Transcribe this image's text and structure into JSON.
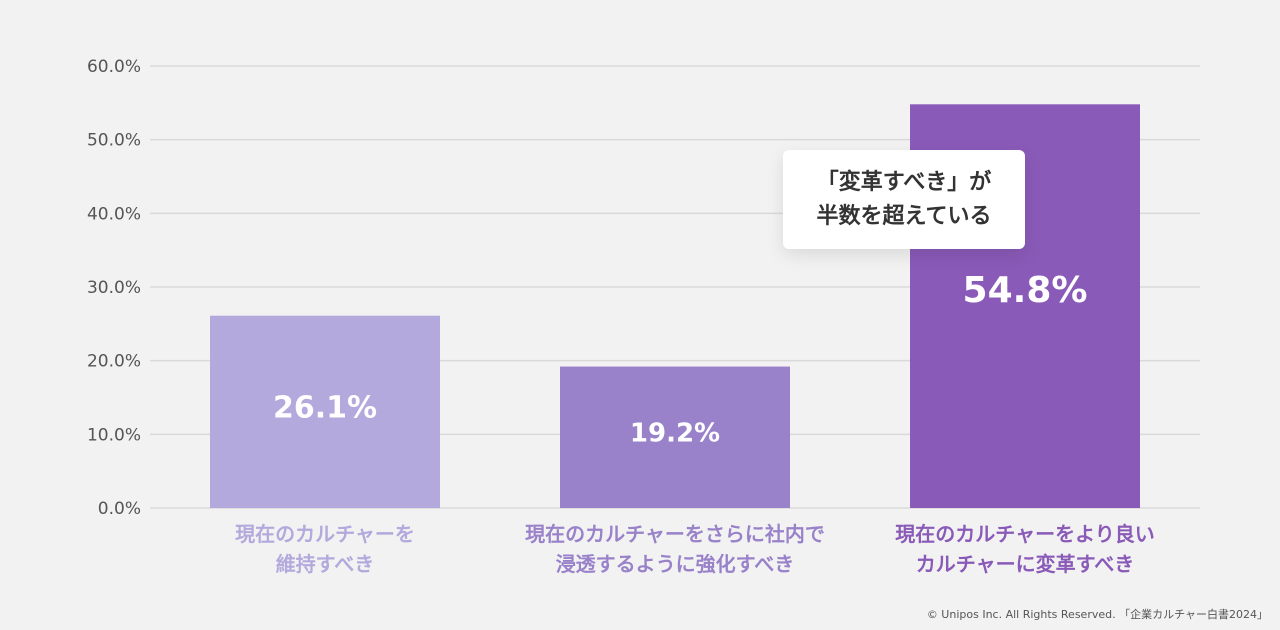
{
  "chart_data": {
    "type": "bar",
    "categories": [
      [
        "現在のカルチャーを",
        "維持すべき"
      ],
      [
        "現在のカルチャーをさらに社内で",
        "浸透するように強化すべき"
      ],
      [
        "現在のカルチャーをより良い",
        "カルチャーに変革すべき"
      ]
    ],
    "values": [
      26.1,
      19.2,
      54.8
    ],
    "value_labels": [
      "26.1%",
      "19.2%",
      "54.8%"
    ],
    "colors": [
      "#b3a9dc",
      "#9982c9",
      "#8a5ab8"
    ],
    "label_colors": [
      "#b3a9dc",
      "#9982c9",
      "#8a5ab8"
    ],
    "yticks": [
      "0.0%",
      "10.0%",
      "20.0%",
      "30.0%",
      "40.0%",
      "50.0%",
      "60.0%"
    ],
    "ylim": [
      0,
      60
    ],
    "grid": true,
    "annotation": {
      "lines": [
        "「変革すべき」が",
        "半数を超えている"
      ]
    }
  },
  "footer": "© Unipos Inc. All Rights Reserved. 「企業カルチャー白書2024」"
}
